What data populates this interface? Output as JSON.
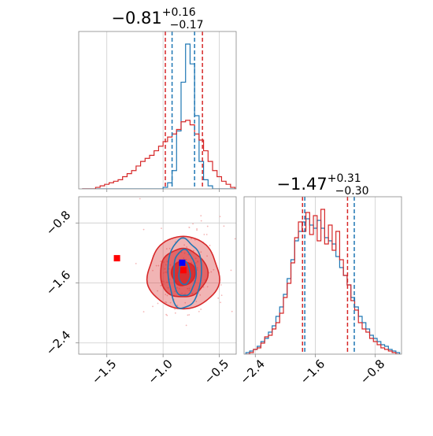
{
  "chart_data": [
    {
      "type": "histogram",
      "panel": "marginal-x",
      "title_value": "−0.81",
      "title_plus": "+0.16",
      "title_minus": "−0.17",
      "xlim": [
        -1.75,
        -0.35
      ],
      "bin_centers": [
        -1.7,
        -1.66,
        -1.62,
        -1.58,
        -1.54,
        -1.5,
        -1.46,
        -1.42,
        -1.38,
        -1.34,
        -1.3,
        -1.26,
        -1.22,
        -1.18,
        -1.14,
        -1.1,
        -1.06,
        -1.02,
        -0.98,
        -0.94,
        -0.9,
        -0.86,
        -0.82,
        -0.78,
        -0.74,
        -0.7,
        -0.66,
        -0.62,
        -0.58,
        -0.54,
        -0.5,
        -0.46,
        -0.42,
        -0.38
      ],
      "series": [
        {
          "color": "#1f77b4",
          "values": [
            0,
            0,
            0,
            0,
            0,
            0,
            0,
            0,
            0,
            0,
            0,
            0,
            0,
            0,
            0,
            0,
            0,
            0,
            0.01,
            0.04,
            0.12,
            0.38,
            0.7,
            0.95,
            0.82,
            0.48,
            0.18,
            0.06,
            0.02,
            0,
            0,
            0,
            0,
            0
          ]
        },
        {
          "color": "#d62728",
          "values": [
            0,
            0,
            0,
            0.01,
            0.02,
            0.03,
            0.04,
            0.05,
            0.06,
            0.08,
            0.1,
            0.12,
            0.15,
            0.18,
            0.2,
            0.22,
            0.25,
            0.28,
            0.31,
            0.34,
            0.36,
            0.39,
            0.44,
            0.45,
            0.42,
            0.36,
            0.32,
            0.25,
            0.18,
            0.12,
            0.08,
            0.05,
            0.03,
            0.01
          ]
        }
      ],
      "vlines": [
        {
          "x": -0.98,
          "color": "#d62728"
        },
        {
          "x": -0.65,
          "color": "#d62728"
        },
        {
          "x": -0.92,
          "color": "#1f77b4"
        },
        {
          "x": -0.72,
          "color": "#1f77b4"
        }
      ],
      "grid": true
    },
    {
      "type": "contour",
      "panel": "joint",
      "xlim": [
        -1.75,
        -0.35
      ],
      "ylim": [
        -2.55,
        -0.45
      ],
      "xticks": [
        -1.5,
        -1.0,
        -0.5
      ],
      "xtick_labels": [
        "−1.5",
        "−1.0",
        "−0.5"
      ],
      "yticks": [
        -0.8,
        -1.6,
        -2.4
      ],
      "ytick_labels": [
        "−0.8",
        "−1.6",
        "−2.4"
      ],
      "series": [
        {
          "color": "#d62728",
          "center": [
            -0.82,
            -1.47
          ],
          "sigma": [
            0.17,
            0.31
          ],
          "levels": [
            1,
            2,
            3
          ]
        },
        {
          "color": "#1f77b4",
          "center": [
            -0.81,
            -1.47
          ],
          "sigma": [
            0.09,
            0.28
          ],
          "levels": [
            1,
            2,
            3
          ]
        }
      ],
      "markers": [
        {
          "x": -1.41,
          "y": -1.27,
          "color": "#ff0000"
        },
        {
          "x": -0.83,
          "y": -1.33,
          "color": "#0000ff"
        },
        {
          "x": -0.82,
          "y": -1.43,
          "color": "#ff0000"
        }
      ],
      "grid": true
    },
    {
      "type": "histogram",
      "panel": "marginal-y",
      "title_value": "−1.47",
      "title_plus": "+0.31",
      "title_minus": "−0.30",
      "xlim": [
        -2.55,
        -0.45
      ],
      "xticks": [
        -2.4,
        -1.6,
        -0.8
      ],
      "xtick_labels": [
        "−2.4",
        "−1.6",
        "−0.8"
      ],
      "bin_centers": [
        -2.5,
        -2.45,
        -2.4,
        -2.35,
        -2.3,
        -2.25,
        -2.2,
        -2.15,
        -2.1,
        -2.05,
        -2.0,
        -1.95,
        -1.9,
        -1.85,
        -1.8,
        -1.75,
        -1.7,
        -1.65,
        -1.6,
        -1.55,
        -1.5,
        -1.45,
        -1.4,
        -1.35,
        -1.3,
        -1.25,
        -1.2,
        -1.15,
        -1.1,
        -1.05,
        -1.0,
        -0.95,
        -0.9,
        -0.85,
        -0.8,
        -0.75,
        -0.7,
        -0.65,
        -0.6,
        -0.55,
        -0.5
      ],
      "series": [
        {
          "color": "#1f77b4",
          "values": [
            0.01,
            0.02,
            0.03,
            0.05,
            0.08,
            0.1,
            0.14,
            0.18,
            0.24,
            0.3,
            0.38,
            0.48,
            0.6,
            0.72,
            0.78,
            0.84,
            0.86,
            0.82,
            0.8,
            0.85,
            0.8,
            0.74,
            0.72,
            0.7,
            0.62,
            0.55,
            0.5,
            0.44,
            0.36,
            0.3,
            0.24,
            0.2,
            0.16,
            0.12,
            0.1,
            0.08,
            0.06,
            0.05,
            0.03,
            0.02,
            0.01
          ]
        },
        {
          "color": "#d62728",
          "values": [
            0,
            0.01,
            0.03,
            0.04,
            0.07,
            0.11,
            0.12,
            0.16,
            0.2,
            0.26,
            0.36,
            0.45,
            0.58,
            0.74,
            0.84,
            0.78,
            0.9,
            0.76,
            0.88,
            0.72,
            0.92,
            0.7,
            0.82,
            0.66,
            0.78,
            0.6,
            0.5,
            0.44,
            0.34,
            0.28,
            0.2,
            0.16,
            0.14,
            0.1,
            0.08,
            0.06,
            0.04,
            0.03,
            0.02,
            0.01,
            0
          ]
        }
      ],
      "vlines": [
        {
          "x": -1.77,
          "color": "#d62728"
        },
        {
          "x": -1.17,
          "color": "#d62728"
        },
        {
          "x": -1.74,
          "color": "#1f77b4"
        },
        {
          "x": -1.08,
          "color": "#1f77b4"
        }
      ],
      "grid": true
    }
  ]
}
